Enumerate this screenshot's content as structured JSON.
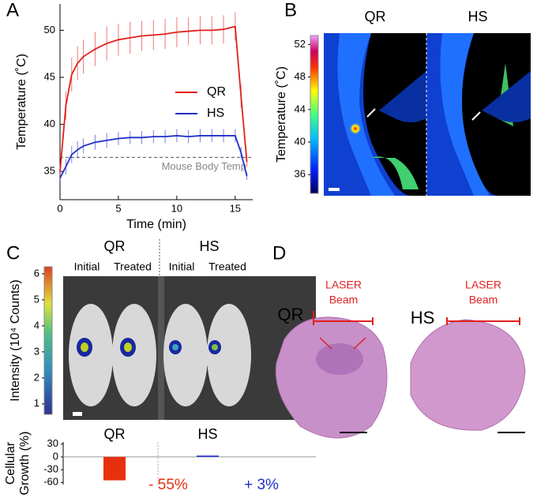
{
  "chart_data": [
    {
      "type": "line",
      "xlabel": "Time (min)",
      "ylabel": "Temperature (˚C)",
      "x": [
        0,
        0.5,
        1,
        1.5,
        2,
        3,
        4,
        5,
        6,
        7,
        8,
        9,
        10,
        11,
        12,
        13,
        14,
        15,
        15.5,
        16
      ],
      "xlim": [
        0,
        16.5
      ],
      "ylim": [
        32,
        52.8
      ],
      "xticks": [
        0,
        5,
        10,
        15
      ],
      "yticks": [
        35,
        40,
        45,
        50
      ],
      "reference_line": 36.5,
      "annotation": "Mouse Body Temp",
      "series": [
        {
          "name": "QR",
          "color": "#e0201b",
          "values": [
            35,
            42,
            45.3,
            46.5,
            47.2,
            48,
            48.6,
            49,
            49.2,
            49.4,
            49.5,
            49.6,
            49.8,
            49.9,
            50,
            50,
            50.1,
            50.4,
            43,
            36
          ],
          "errors": [
            0.5,
            1.5,
            1.8,
            1.8,
            1.8,
            1.8,
            1.8,
            1.7,
            1.7,
            1.6,
            1.6,
            1.6,
            1.6,
            1.5,
            1.5,
            1.5,
            1.5,
            1.5,
            1.2,
            0.5
          ]
        },
        {
          "name": "HS",
          "color": "#1f2fc8",
          "values": [
            34.3,
            35.5,
            36.8,
            37.3,
            37.7,
            38.1,
            38.3,
            38.5,
            38.6,
            38.6,
            38.7,
            38.7,
            38.8,
            38.7,
            38.8,
            38.8,
            38.8,
            38.8,
            37,
            34.5
          ],
          "errors": [
            0.4,
            0.8,
            0.9,
            0.9,
            0.8,
            0.8,
            0.8,
            0.7,
            0.7,
            0.7,
            0.7,
            0.7,
            0.7,
            0.7,
            0.7,
            0.7,
            0.7,
            0.7,
            0.6,
            0.4
          ]
        }
      ]
    },
    {
      "type": "colorbar",
      "ylabel": "Temperature (˚C)",
      "ylim": [
        33.7,
        53.1
      ],
      "yticks": [
        36,
        40,
        44,
        48,
        52
      ]
    },
    {
      "type": "colorbar",
      "ylabel": "Intensity (10⁴ Counts)",
      "ylim": [
        0.6,
        6.27
      ],
      "yticks": [
        1,
        2,
        3,
        4,
        5,
        6
      ]
    },
    {
      "type": "bar",
      "ylabel": [
        "Cellular",
        "Growth (%)"
      ],
      "categories": [
        "QR",
        "HS"
      ],
      "values": [
        -55,
        3
      ],
      "value_labels": [
        "- 55%",
        "+ 3%"
      ],
      "colors": [
        "#e8300f",
        "#1f2fc8"
      ],
      "ylim": [
        -65,
        35
      ],
      "yticks": [
        30,
        0,
        -30,
        -60
      ]
    }
  ],
  "labels": {
    "panels": [
      "A",
      "B",
      "C",
      "D"
    ],
    "b_headers": [
      "QR",
      "HS"
    ],
    "c_headers": [
      "QR",
      "HS"
    ],
    "c_sub": [
      "Initial",
      "Treated",
      "Initial",
      "Treated"
    ],
    "d_groups": [
      "QR",
      "HS"
    ],
    "d_beam": [
      "LASER",
      "Beam"
    ]
  }
}
